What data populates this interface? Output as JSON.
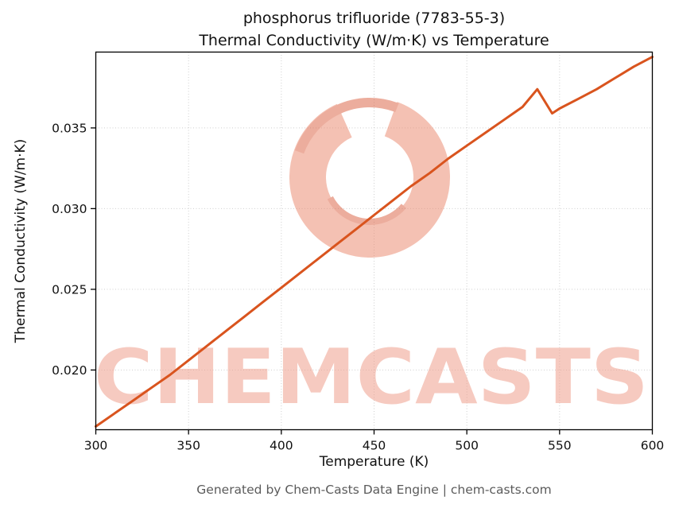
{
  "figure": {
    "title_line1": "phosphorus trifluoride (7783-55-3)",
    "title_line2": "Thermal Conductivity (W/m·K) vs Temperature",
    "footer": "Generated by Chem-Casts Data Engine | chem-casts.com"
  },
  "watermark": {
    "text": "CHEMCASTS",
    "text_color": "#ef9f8c",
    "ring_color": "#ec8f76",
    "accent_color": "#dd6b4d",
    "opacity": 0.55
  },
  "chart_data": {
    "type": "line",
    "title": "phosphorus trifluoride (7783-55-3)\nThermal Conductivity (W/m·K) vs Temperature",
    "xlabel": "Temperature (K)",
    "ylabel": "Thermal Conductivity (W/m·K)",
    "xlim": [
      300,
      600
    ],
    "ylim": [
      0.0163,
      0.0397
    ],
    "xticks": [
      300,
      350,
      400,
      450,
      500,
      550,
      600
    ],
    "xtick_labels": [
      "300",
      "350",
      "400",
      "450",
      "500",
      "550",
      "600"
    ],
    "yticks": [
      0.02,
      0.025,
      0.03,
      0.035
    ],
    "ytick_labels": [
      "0.020",
      "0.025",
      "0.030",
      "0.035"
    ],
    "grid": true,
    "legend": false,
    "line_color": "#d9541e",
    "series": [
      {
        "name": "Thermal Conductivity (W/m·K)",
        "x": [
          300,
          310,
          320,
          330,
          340,
          350,
          360,
          370,
          380,
          390,
          400,
          410,
          420,
          430,
          440,
          450,
          460,
          470,
          480,
          490,
          500,
          510,
          520,
          530,
          538,
          546,
          550,
          560,
          570,
          580,
          590,
          600
        ],
        "y": [
          0.0165,
          0.0173,
          0.0181,
          0.0189,
          0.0197,
          0.0206,
          0.0215,
          0.0224,
          0.0233,
          0.0242,
          0.0251,
          0.026,
          0.0269,
          0.0278,
          0.0287,
          0.0296,
          0.0305,
          0.0314,
          0.0322,
          0.0331,
          0.0339,
          0.0347,
          0.0355,
          0.0363,
          0.0374,
          0.0359,
          0.0362,
          0.0368,
          0.0374,
          0.0381,
          0.0388,
          0.0394
        ]
      }
    ]
  }
}
